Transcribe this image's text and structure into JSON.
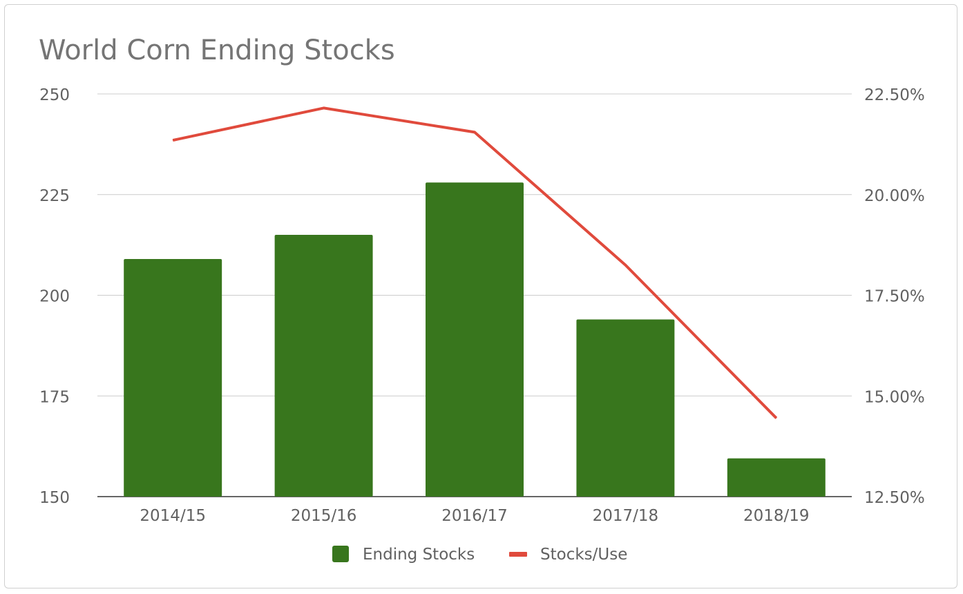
{
  "chart_data": {
    "type": "bar",
    "title": "World Corn Ending Stocks",
    "categories": [
      "2014/15",
      "2015/16",
      "2016/17",
      "2017/18",
      "2018/19"
    ],
    "series": [
      {
        "name": "Ending Stocks",
        "type": "bar",
        "axis": "left",
        "color": "#38761d",
        "values": [
          209,
          215,
          228,
          194,
          159.5
        ]
      },
      {
        "name": "Stocks/Use",
        "type": "line",
        "axis": "right",
        "color": "#e04a3c",
        "values": [
          0.2135,
          0.2215,
          0.2155,
          0.1825,
          0.1445
        ]
      }
    ],
    "y_left": {
      "min": 150,
      "max": 250,
      "ticks": [
        "250",
        "225",
        "200",
        "175",
        "150"
      ],
      "tick_values": [
        250,
        225,
        200,
        175,
        150
      ]
    },
    "y_right": {
      "min": 0.125,
      "max": 0.225,
      "ticks": [
        "22.50%",
        "20.00%",
        "17.50%",
        "15.00%",
        "12.50%"
      ],
      "tick_values": [
        0.225,
        0.2,
        0.175,
        0.15,
        0.125
      ]
    },
    "grid": true,
    "legend_position": "bottom"
  }
}
